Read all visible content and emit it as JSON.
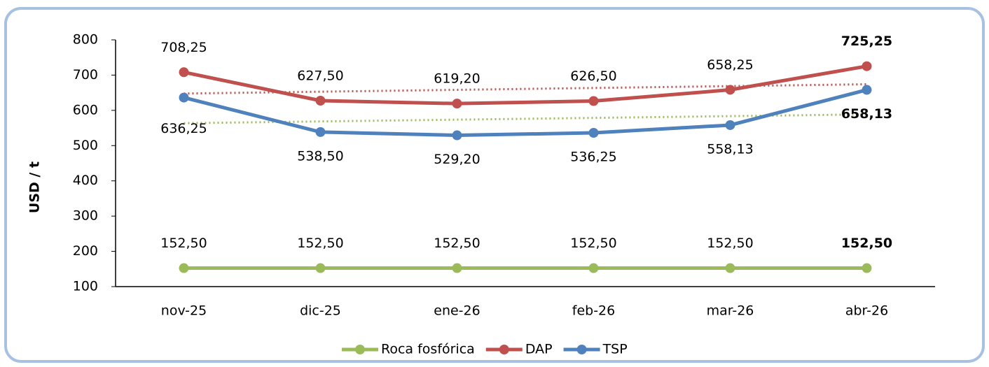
{
  "chart_data": {
    "type": "line",
    "y_label": "USD / t",
    "categories": [
      "nov-25",
      "dic-25",
      "ene-26",
      "feb-26",
      "mar-26",
      "abr-26"
    ],
    "series": [
      {
        "name": "Roca fosfórica",
        "color": "#9bbb59",
        "values": [
          152.5,
          152.5,
          152.5,
          152.5,
          152.5,
          152.5
        ],
        "value_labels": [
          "152,50",
          "152,50",
          "152,50",
          "152,50",
          "152,50",
          "152,50"
        ],
        "label_side": "above"
      },
      {
        "name": "DAP",
        "color": "#c0504d",
        "values": [
          708.25,
          627.5,
          619.2,
          626.5,
          658.25,
          725.25
        ],
        "value_labels": [
          "708,25",
          "627,50",
          "619,20",
          "626,50",
          "658,25",
          "725,25"
        ],
        "label_side": "above",
        "trendline": true,
        "trendline_color": "#c0504d"
      },
      {
        "name": "TSP",
        "color": "#4f81bd",
        "values": [
          636.25,
          538.5,
          529.2,
          536.25,
          558.13,
          658.13
        ],
        "value_labels": [
          "636,25",
          "538,50",
          "529,20",
          "536,25",
          "558,13",
          "658,13"
        ],
        "label_side": "below",
        "trendline": true,
        "trendline_color": "#9bbb59"
      }
    ],
    "ylim": [
      100,
      800
    ],
    "yticks": [
      100,
      200,
      300,
      400,
      500,
      600,
      700,
      800
    ],
    "grid": false,
    "legend": "bottom"
  }
}
